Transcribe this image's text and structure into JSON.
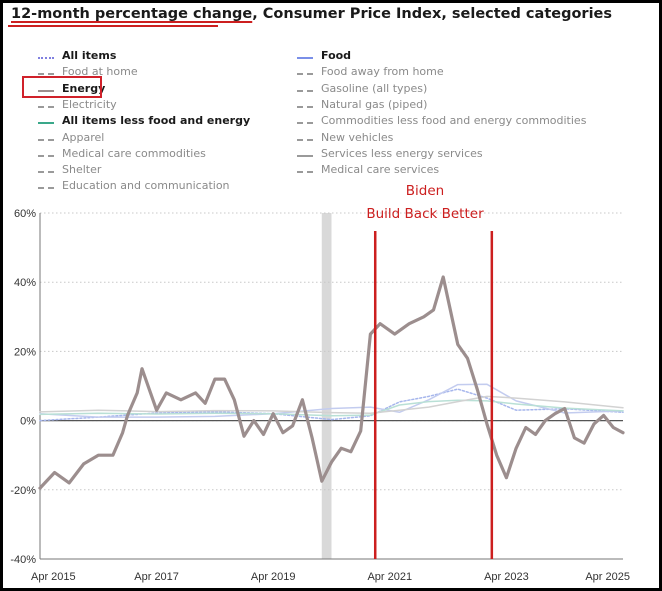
{
  "chart_data": {
    "type": "line",
    "title": "12-month percentage change, Consumer Price Index, selected categories",
    "title_parts": [
      "12-month percentage change",
      ", Consumer Price Index, selected categories"
    ],
    "ylim": [
      -40,
      60
    ],
    "y_ticks": [
      "60%",
      "40%",
      "20%",
      "0%",
      "-20%",
      "-40%"
    ],
    "x_ticks": [
      "Apr 2015",
      "Apr 2017",
      "Apr 2019",
      "Apr 2021",
      "Apr 2023",
      "Apr 2025"
    ],
    "xlim": [
      "2015-04",
      "2025-04"
    ],
    "grid": "horizontal dotted",
    "legend": [
      {
        "label": "All items",
        "style": "dotted",
        "color": "#8080e0",
        "bold": true
      },
      {
        "label": "Food",
        "style": "solid",
        "color": "#7a8fe8",
        "bold": true
      },
      {
        "label": "Food at home",
        "style": "dashed",
        "color": "#9a9a9a",
        "bold": false
      },
      {
        "label": "Food away from home",
        "style": "dashed",
        "color": "#9a9a9a",
        "bold": false
      },
      {
        "label": "Energy",
        "style": "solid",
        "color": "#9c8e8e",
        "bold": true
      },
      {
        "label": "Gasoline (all types)",
        "style": "dashed",
        "color": "#9a9a9a",
        "bold": false
      },
      {
        "label": "Electricity",
        "style": "dashed",
        "color": "#9a9a9a",
        "bold": false
      },
      {
        "label": "Natural gas (piped)",
        "style": "dashed",
        "color": "#9a9a9a",
        "bold": false
      },
      {
        "label": "All items less food and energy",
        "style": "solid",
        "color": "#3aa88a",
        "bold": true
      },
      {
        "label": "Commodities less food and energy commodities",
        "style": "dashed",
        "color": "#9a9a9a",
        "bold": false
      },
      {
        "label": "Apparel",
        "style": "dashed",
        "color": "#9a9a9a",
        "bold": false
      },
      {
        "label": "New vehicles",
        "style": "dashed",
        "color": "#9a9a9a",
        "bold": false
      },
      {
        "label": "Medical care commodities",
        "style": "dashed",
        "color": "#9a9a9a",
        "bold": false
      },
      {
        "label": "Services less energy services",
        "style": "solid",
        "color": "#9a9a9a",
        "bold": false
      },
      {
        "label": "Shelter",
        "style": "dashed",
        "color": "#9a9a9a",
        "bold": false
      },
      {
        "label": "Medical care services",
        "style": "dashed",
        "color": "#9a9a9a",
        "bold": false
      },
      {
        "label": "Education and communication",
        "style": "dashed",
        "color": "#9a9a9a",
        "bold": false
      }
    ],
    "recession_shading": {
      "from": "2020-02",
      "to": "2020-04",
      "color": "#d9d9d9"
    },
    "annotations": {
      "text_lines": [
        "Biden",
        "Build Back Better"
      ],
      "vertical_lines": [
        "2021-01",
        "2023-01"
      ],
      "color": "#cc1f1f"
    },
    "series": [
      {
        "name": "Energy",
        "color": "#9c8e8e",
        "x": [
          "2015-04",
          "2015-07",
          "2015-10",
          "2016-01",
          "2016-04",
          "2016-07",
          "2016-09",
          "2016-10",
          "2016-12",
          "2017-01",
          "2017-04",
          "2017-06",
          "2017-09",
          "2017-12",
          "2018-02",
          "2018-04",
          "2018-06",
          "2018-08",
          "2018-10",
          "2018-12",
          "2019-02",
          "2019-04",
          "2019-06",
          "2019-08",
          "2019-10",
          "2019-12",
          "2020-02",
          "2020-04",
          "2020-06",
          "2020-08",
          "2020-10",
          "2020-12",
          "2021-02",
          "2021-05",
          "2021-08",
          "2021-11",
          "2022-01",
          "2022-03",
          "2022-06",
          "2022-08",
          "2022-10",
          "2022-12",
          "2023-02",
          "2023-04",
          "2023-06",
          "2023-08",
          "2023-10",
          "2023-12",
          "2024-02",
          "2024-04",
          "2024-06",
          "2024-08",
          "2024-10",
          "2024-12",
          "2025-02",
          "2025-04"
        ],
        "values": [
          -19.5,
          -15.0,
          -18.0,
          -12.5,
          -10.0,
          -10.0,
          -3.5,
          1.5,
          8.0,
          15.0,
          3.0,
          8.0,
          6.0,
          8.0,
          5.0,
          12.0,
          12.0,
          6.0,
          -4.5,
          0.0,
          -4.0,
          2.0,
          -3.5,
          -1.5,
          6.0,
          -5.0,
          -17.5,
          -12.0,
          -8.0,
          -9.0,
          -3.0,
          25.0,
          28.0,
          25.0,
          28.0,
          30.0,
          32.0,
          41.5,
          22.0,
          18.0,
          9.0,
          -1.0,
          -10.0,
          -16.5,
          -8.0,
          -2.0,
          -4.0,
          0.0,
          2.0,
          3.5,
          -5.0,
          -6.5,
          -1.0,
          1.5,
          -2.0,
          -3.5
        ]
      },
      {
        "name": "All items",
        "color": "#a6b6ec",
        "x": [
          "2015-04",
          "2016-04",
          "2017-04",
          "2018-04",
          "2019-04",
          "2020-04",
          "2020-12",
          "2021-06",
          "2021-12",
          "2022-06",
          "2022-12",
          "2023-06",
          "2024-04",
          "2025-04"
        ],
        "values": [
          0.0,
          1.0,
          2.2,
          2.5,
          2.0,
          0.3,
          1.4,
          5.4,
          7.0,
          9.1,
          6.5,
          3.0,
          3.4,
          2.4
        ]
      },
      {
        "name": "Food",
        "color": "#c3ccef",
        "x": [
          "2015-04",
          "2016-04",
          "2017-04",
          "2018-04",
          "2019-04",
          "2020-04",
          "2020-12",
          "2021-06",
          "2021-12",
          "2022-06",
          "2022-12",
          "2023-06",
          "2024-04",
          "2025-04"
        ],
        "values": [
          2.0,
          1.0,
          1.0,
          1.2,
          2.0,
          3.5,
          3.9,
          2.4,
          6.0,
          10.4,
          10.5,
          5.7,
          2.2,
          2.8
        ]
      },
      {
        "name": "All items less food and energy",
        "color": "#b9e0d6",
        "x": [
          "2015-04",
          "2016-04",
          "2017-04",
          "2018-04",
          "2019-04",
          "2020-04",
          "2020-12",
          "2021-06",
          "2021-12",
          "2022-06",
          "2022-12",
          "2023-06",
          "2024-04",
          "2025-04"
        ],
        "values": [
          1.8,
          2.1,
          1.9,
          2.1,
          2.0,
          1.4,
          1.6,
          4.5,
          5.5,
          5.9,
          5.7,
          4.8,
          3.6,
          2.8
        ]
      },
      {
        "name": "Services less energy services",
        "color": "#d2d2d2",
        "x": [
          "2015-04",
          "2016-04",
          "2017-04",
          "2018-04",
          "2019-04",
          "2020-04",
          "2020-12",
          "2021-06",
          "2021-12",
          "2022-06",
          "2022-12",
          "2023-06",
          "2024-04",
          "2025-04"
        ],
        "values": [
          2.5,
          3.0,
          2.6,
          2.9,
          2.8,
          2.3,
          2.1,
          3.0,
          3.9,
          5.5,
          7.0,
          6.5,
          5.4,
          3.7
        ]
      }
    ]
  }
}
